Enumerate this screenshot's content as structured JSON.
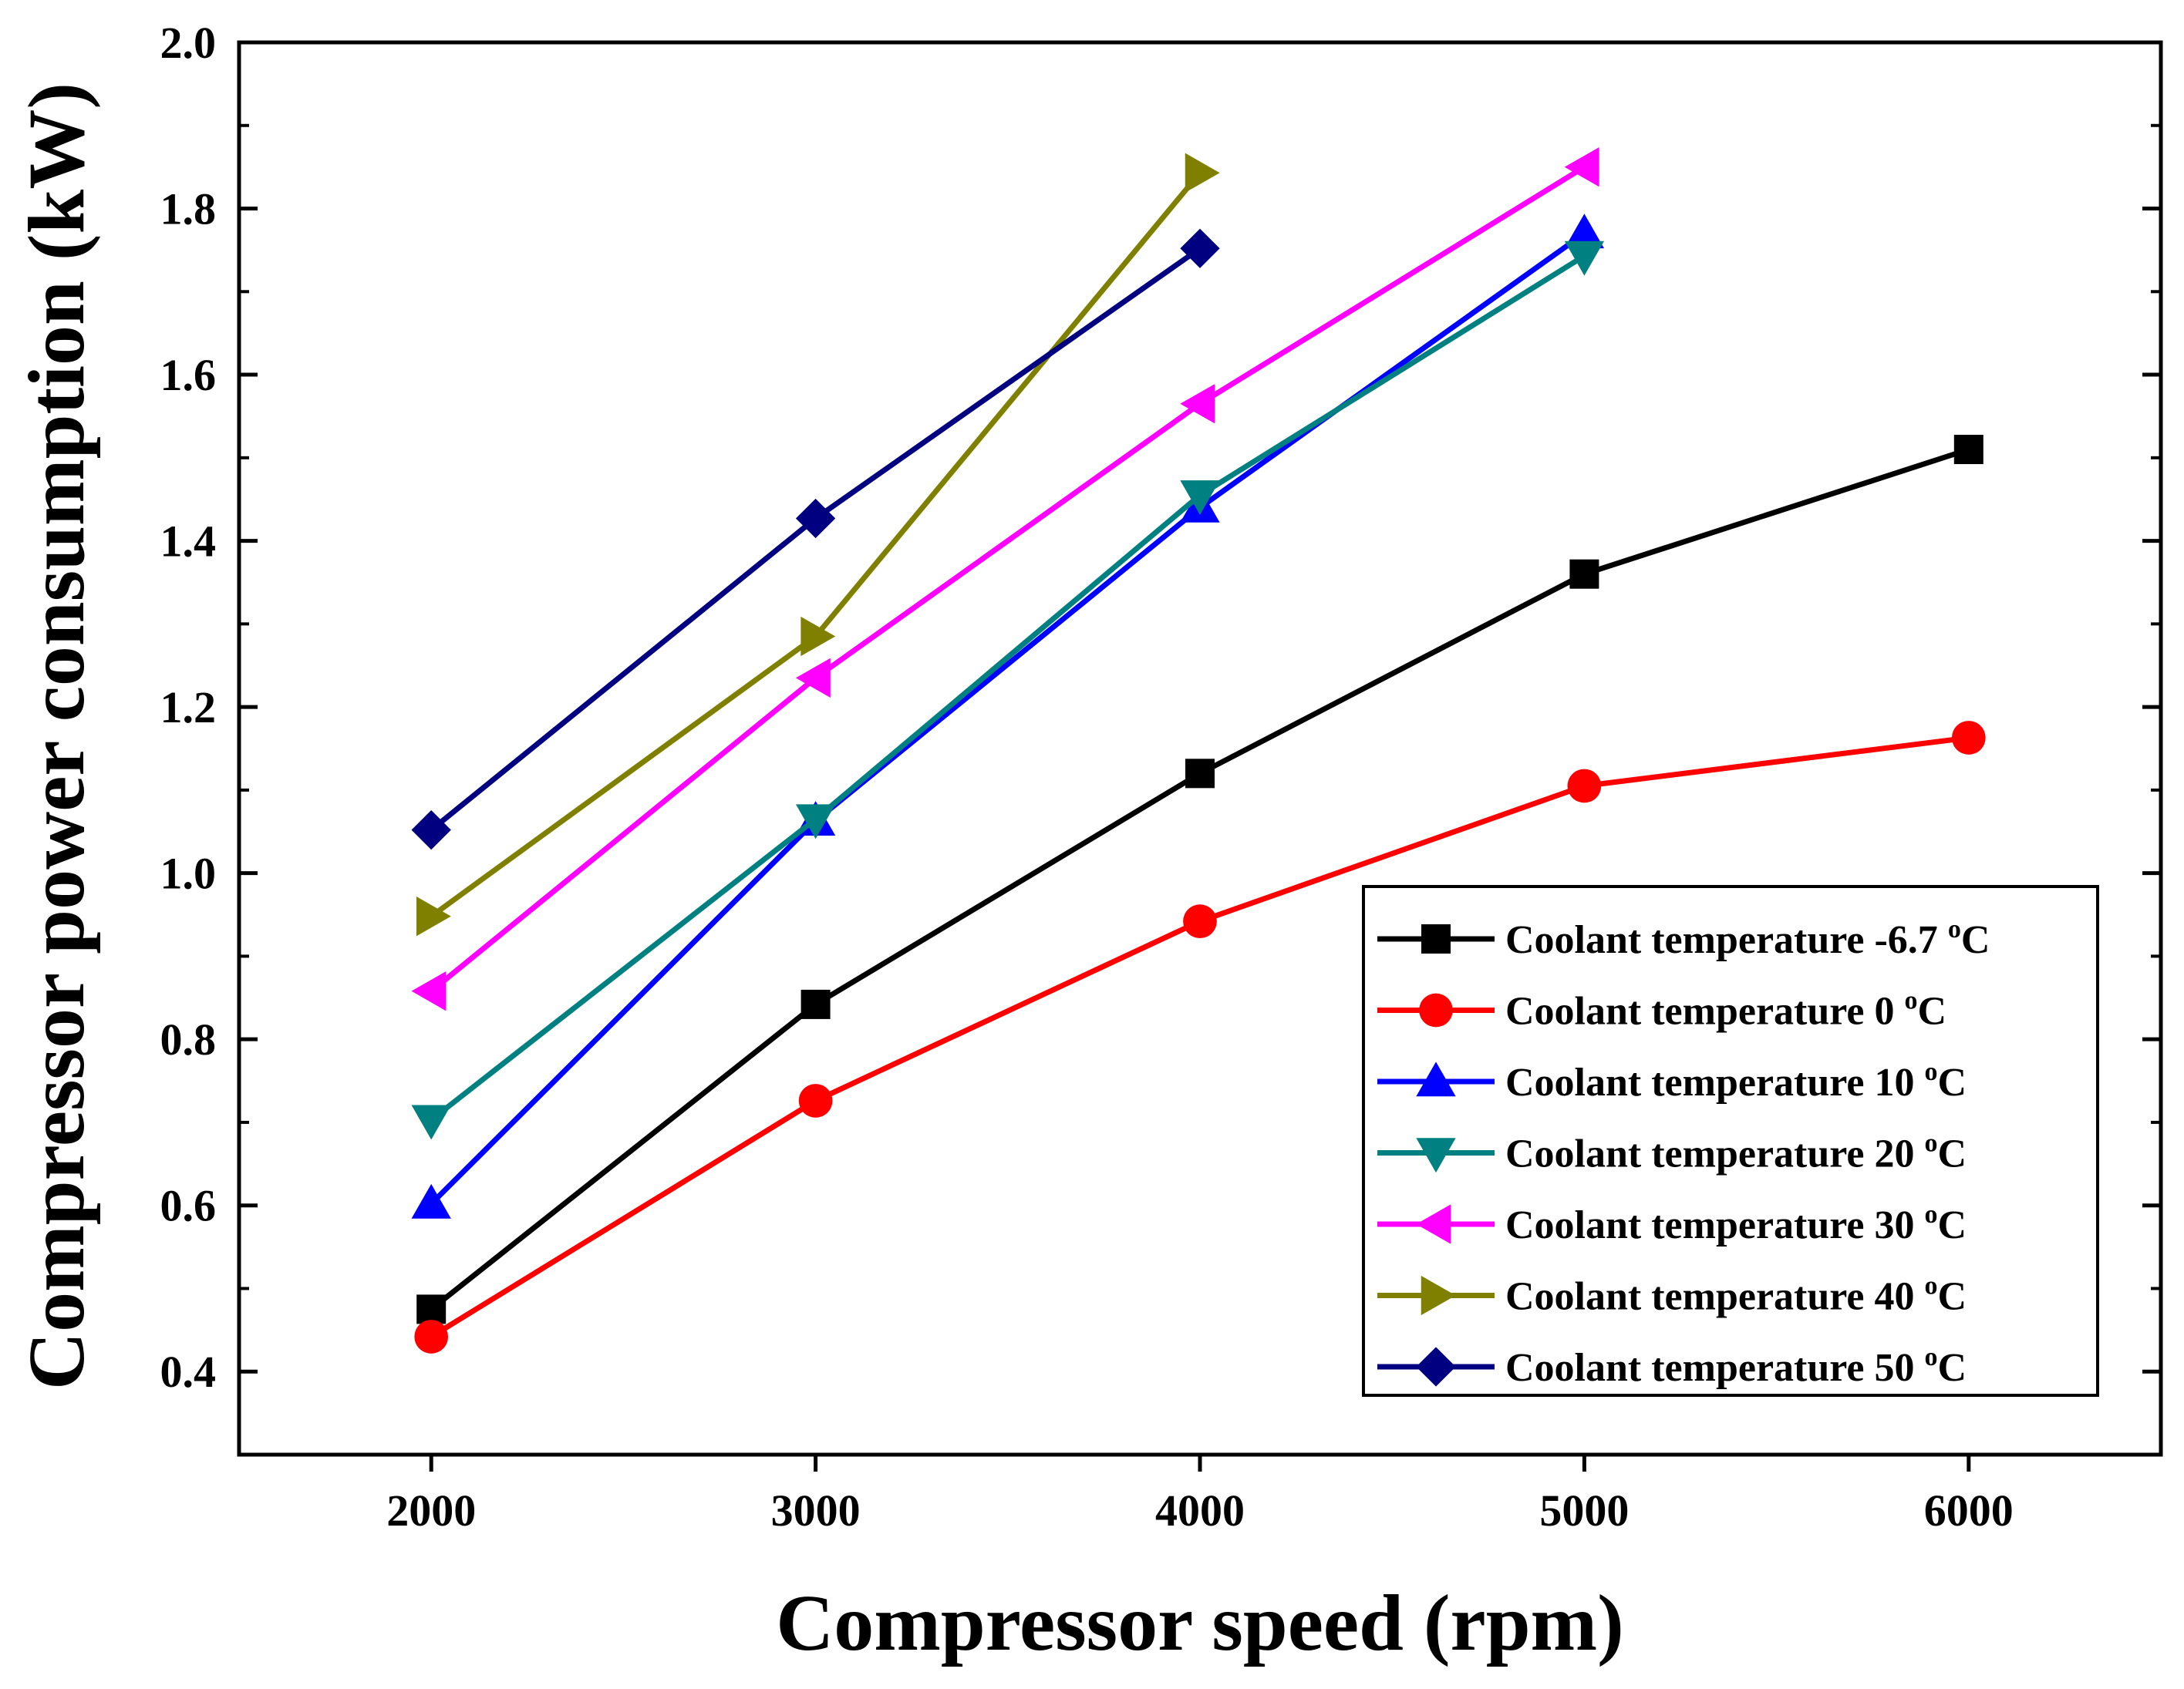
{
  "chart_data": {
    "type": "line",
    "title": "",
    "xlabel": "Compressor speed (rpm)",
    "ylabel": "Compressor power consumption (kW)",
    "xlim": [
      1500,
      6500
    ],
    "ylim": [
      0.3,
      2.0
    ],
    "x_ticks": [
      2000,
      3000,
      4000,
      5000,
      6000
    ],
    "y_ticks": [
      0.4,
      0.6,
      0.8,
      1.0,
      1.2,
      1.4,
      1.6,
      1.8,
      2.0
    ],
    "x_tick_labels": [
      "2000",
      "3000",
      "4000",
      "5000",
      "6000"
    ],
    "y_tick_labels": [
      "0.4",
      "0.6",
      "0.8",
      "1.0",
      "1.2",
      "1.4",
      "1.6",
      "1.8",
      "2.0"
    ],
    "grid": false,
    "legend_position": "bottom-right",
    "series": [
      {
        "name": "Coolant temperature -6.7",
        "unit_sup": "o",
        "unit": "C",
        "color": "#000000",
        "marker": "square",
        "x": [
          2000,
          3000,
          4000,
          5000,
          6000
        ],
        "values": [
          0.475,
          0.842,
          1.12,
          1.36,
          1.51
        ]
      },
      {
        "name": "Coolant temperature 0",
        "unit_sup": "o",
        "unit": "C",
        "color": "#ff0000",
        "marker": "circle",
        "x": [
          2000,
          3000,
          4000,
          5000,
          6000
        ],
        "values": [
          0.442,
          0.726,
          0.942,
          1.105,
          1.163
        ]
      },
      {
        "name": "Coolant temperature 10",
        "unit_sup": "o",
        "unit": "C",
        "color": "#0000ff",
        "marker": "triangle-up",
        "x": [
          2000,
          3000,
          4000,
          5000
        ],
        "values": [
          0.602,
          1.063,
          1.44,
          1.77
        ]
      },
      {
        "name": "Coolant temperature 20",
        "unit_sup": "o",
        "unit": "C",
        "color": "#008080",
        "marker": "triangle-down",
        "x": [
          2000,
          3000,
          4000,
          5000
        ],
        "values": [
          0.703,
          1.065,
          1.455,
          1.743
        ]
      },
      {
        "name": "Coolant temperature 30",
        "unit_sup": "o",
        "unit": "C",
        "color": "#ff00ff",
        "marker": "triangle-left",
        "x": [
          2000,
          3000,
          4000,
          5000
        ],
        "values": [
          0.858,
          1.235,
          1.565,
          1.85
        ]
      },
      {
        "name": "Coolant temperature 40",
        "unit_sup": "o",
        "unit": "C",
        "color": "#808000",
        "marker": "triangle-right",
        "x": [
          2000,
          3000,
          4000
        ],
        "values": [
          0.948,
          1.285,
          1.843
        ]
      },
      {
        "name": "Coolant temperature 50",
        "unit_sup": "o",
        "unit": "C",
        "color": "#000080",
        "marker": "diamond",
        "x": [
          2000,
          3000,
          4000
        ],
        "values": [
          1.052,
          1.427,
          1.752
        ]
      }
    ]
  }
}
